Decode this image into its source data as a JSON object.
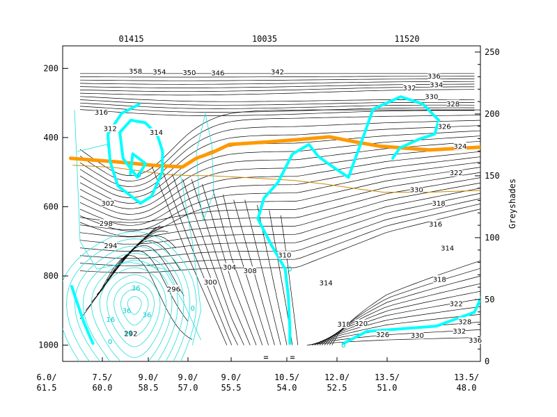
{
  "chart_data": {
    "type": "line",
    "top_station_labels": [
      "01415",
      "10035",
      "11520"
    ],
    "left_axis": {
      "ticks": [
        200,
        400,
        600,
        800,
        1000
      ],
      "range": [
        1047,
        135
      ],
      "inverted": true
    },
    "right_axis": {
      "label": "Greyshades",
      "ticks": [
        0,
        50,
        100,
        150,
        200,
        250
      ],
      "range": [
        0,
        255
      ]
    },
    "x_axis": {
      "tick_labels": [
        {
          "x": 0,
          "lon": "6.0/",
          "lat": "61.5"
        },
        {
          "x": 1,
          "lon": "7.5/",
          "lat": "60.0"
        },
        {
          "x": 2,
          "lon": "9.0/",
          "lat": "58.5"
        },
        {
          "x": 3,
          "lon": "9.0/",
          "lat": "57.0"
        },
        {
          "x": 4,
          "lon": "9.0/",
          "lat": "55.5"
        },
        {
          "x": 5,
          "lon": "10.5/",
          "lat": "54.0"
        },
        {
          "x": 6,
          "lon": "12.0/",
          "lat": "52.5"
        },
        {
          "x": 7,
          "lon": "13.5/",
          "lat": "51.0"
        },
        {
          "x": 8,
          "lon": "13.5/",
          "lat": "48.0"
        }
      ]
    },
    "theta_labels": [
      {
        "text": "342",
        "x": 4.83,
        "y": 210
      },
      {
        "text": "346",
        "x": 3.69,
        "y": 213
      },
      {
        "text": "350",
        "x": 3.03,
        "y": 212
      },
      {
        "text": "354",
        "x": 2.28,
        "y": 210
      },
      {
        "text": "358",
        "x": 1.72,
        "y": 208
      },
      {
        "text": "336",
        "x": 7.59,
        "y": 222
      },
      {
        "text": "334",
        "x": 7.62,
        "y": 247
      },
      {
        "text": "332",
        "x": 7.28,
        "y": 257
      },
      {
        "text": "330",
        "x": 7.56,
        "y": 282
      },
      {
        "text": "328",
        "x": 7.83,
        "y": 303
      },
      {
        "text": "326",
        "x": 7.72,
        "y": 368
      },
      {
        "text": "324",
        "x": 7.92,
        "y": 425
      },
      {
        "text": "322",
        "x": 7.87,
        "y": 502
      },
      {
        "text": "330",
        "x": 7.37,
        "y": 551
      },
      {
        "text": "318",
        "x": 7.65,
        "y": 590
      },
      {
        "text": "316",
        "x": 7.61,
        "y": 650
      },
      {
        "text": "314",
        "x": 7.76,
        "y": 720
      },
      {
        "text": "318",
        "x": 7.66,
        "y": 810
      },
      {
        "text": "322",
        "x": 7.87,
        "y": 880
      },
      {
        "text": "328",
        "x": 7.98,
        "y": 932
      },
      {
        "text": "332",
        "x": 7.91,
        "y": 960
      },
      {
        "text": "336",
        "x": 8.11,
        "y": 986
      },
      {
        "text": "330",
        "x": 7.38,
        "y": 972
      },
      {
        "text": "326",
        "x": 6.91,
        "y": 970
      },
      {
        "text": "320",
        "x": 6.48,
        "y": 938
      },
      {
        "text": "318",
        "x": 6.14,
        "y": 940
      },
      {
        "text": "314",
        "x": 5.78,
        "y": 820
      },
      {
        "text": "310",
        "x": 4.96,
        "y": 740
      },
      {
        "text": "308",
        "x": 4.34,
        "y": 785
      },
      {
        "text": "304",
        "x": 3.96,
        "y": 775
      },
      {
        "text": "300",
        "x": 3.52,
        "y": 818
      },
      {
        "text": "296",
        "x": 2.64,
        "y": 838
      },
      {
        "text": "292",
        "x": 1.62,
        "y": 967
      },
      {
        "text": "314",
        "x": 2.2,
        "y": 385
      },
      {
        "text": "312",
        "x": 1.17,
        "y": 374
      },
      {
        "text": "316",
        "x": 0.98,
        "y": 327
      },
      {
        "text": "302",
        "x": 1.12,
        "y": 590
      },
      {
        "text": "298",
        "x": 1.08,
        "y": 648
      },
      {
        "text": "294",
        "x": 1.18,
        "y": 713
      }
    ],
    "cyan_labels": [
      {
        "text": "0",
        "x": 1.8,
        "y": 508
      },
      {
        "text": "0",
        "x": 5.06,
        "y": 780
      },
      {
        "text": "0",
        "x": 6.13,
        "y": 1000
      },
      {
        "text": "0",
        "x": 1.17,
        "y": 990
      },
      {
        "text": "16",
        "x": 1.18,
        "y": 925
      },
      {
        "text": "36",
        "x": 1.53,
        "y": 900
      },
      {
        "text": "36",
        "x": 1.97,
        "y": 912
      },
      {
        "text": "36",
        "x": 1.73,
        "y": 835
      },
      {
        "text": "16",
        "x": 1.56,
        "y": 965
      },
      {
        "text": "0",
        "x": 3.11,
        "y": 893
      }
    ],
    "series": [
      {
        "color": "#ff9900",
        "width": 5,
        "points": [
          [
            0.43,
            460
          ],
          [
            1.29,
            470
          ],
          [
            2.1,
            480
          ],
          [
            2.86,
            485
          ],
          [
            3.19,
            460
          ],
          [
            3.59,
            442
          ],
          [
            3.96,
            420
          ],
          [
            4.72,
            412
          ],
          [
            5.3,
            405
          ],
          [
            5.85,
            398
          ],
          [
            6.35,
            412
          ],
          [
            6.86,
            425
          ],
          [
            7.53,
            436
          ],
          [
            8.16,
            428
          ],
          [
            8.59,
            418
          ],
          [
            8.67,
            402
          ]
        ]
      },
      {
        "color": "#cc8800",
        "width": 1,
        "points": [
          [
            0.47,
            480
          ],
          [
            1.23,
            486
          ],
          [
            1.91,
            498
          ],
          [
            2.6,
            508
          ],
          [
            3.11,
            510
          ],
          [
            3.47,
            510
          ],
          [
            4.09,
            514
          ],
          [
            4.75,
            520
          ],
          [
            5.14,
            524
          ],
          [
            5.79,
            535
          ],
          [
            6.4,
            548
          ],
          [
            6.93,
            558
          ],
          [
            7.52,
            558
          ],
          [
            7.88,
            555
          ],
          [
            8.33,
            552
          ],
          [
            8.6,
            550
          ]
        ]
      },
      {
        "color": "#00ffff",
        "width": 4,
        "points": [
          [
            1.8,
            304
          ],
          [
            1.42,
            330
          ],
          [
            1.12,
            390
          ],
          [
            1.17,
            470
          ],
          [
            1.34,
            540
          ],
          [
            1.83,
            590
          ],
          [
            2.08,
            570
          ],
          [
            2.35,
            500
          ],
          [
            2.36,
            440
          ],
          [
            2.22,
            390
          ],
          [
            1.93,
            357
          ],
          [
            1.62,
            350
          ],
          [
            1.38,
            385
          ],
          [
            1.45,
            460
          ],
          [
            1.76,
            515
          ],
          [
            1.94,
            475
          ],
          [
            1.66,
            447
          ],
          [
            1.61,
            505
          ]
        ]
      },
      {
        "color": "#00ffff",
        "width": 4,
        "points": [
          [
            7.45,
            303
          ],
          [
            7.17,
            282
          ],
          [
            6.72,
            318
          ],
          [
            6.52,
            400
          ],
          [
            6.34,
            470
          ],
          [
            6.23,
            515
          ],
          [
            5.87,
            480
          ],
          [
            5.63,
            455
          ],
          [
            5.44,
            420
          ],
          [
            5.11,
            448
          ],
          [
            4.84,
            530
          ],
          [
            4.59,
            575
          ],
          [
            4.48,
            635
          ],
          [
            4.72,
            710
          ],
          [
            4.97,
            780
          ],
          [
            5.03,
            860
          ],
          [
            5.06,
            950
          ],
          [
            5.06,
            995
          ]
        ]
      },
      {
        "color": "#00ffff",
        "width": 4,
        "points": [
          [
            6.13,
            995
          ],
          [
            6.6,
            960
          ],
          [
            7.05,
            955
          ],
          [
            7.62,
            945
          ],
          [
            8.1,
            905
          ],
          [
            8.24,
            835
          ],
          [
            8.43,
            755
          ],
          [
            8.66,
            717
          ]
        ]
      },
      {
        "color": "#00ffff",
        "width": 4,
        "points": [
          [
            7.07,
            460
          ],
          [
            7.16,
            430
          ],
          [
            7.4,
            405
          ],
          [
            7.6,
            390
          ],
          [
            7.65,
            350
          ],
          [
            7.45,
            303
          ]
        ]
      },
      {
        "color": "#00ffff",
        "width": 4,
        "points": [
          [
            0.45,
            830
          ],
          [
            0.5,
            855
          ],
          [
            0.67,
            935
          ],
          [
            0.83,
            995
          ]
        ]
      }
    ],
    "legend_marks": [
      "=",
      "="
    ]
  }
}
